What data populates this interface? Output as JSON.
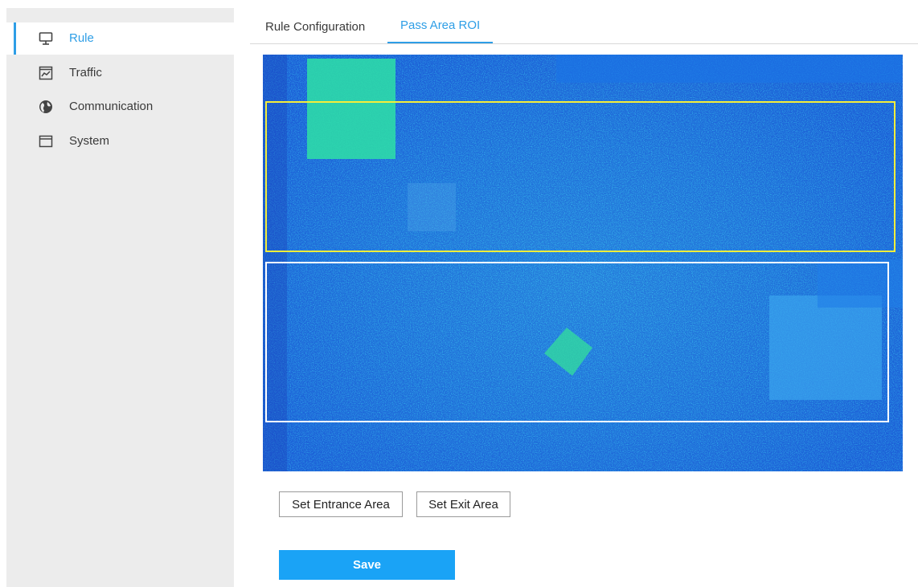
{
  "sidebar": {
    "items": [
      {
        "label": "Rule",
        "icon": "monitor-icon",
        "active": true
      },
      {
        "label": "Traffic",
        "icon": "chart-window-icon",
        "active": false
      },
      {
        "label": "Communication",
        "icon": "globe-icon",
        "active": false
      },
      {
        "label": "System",
        "icon": "window-icon",
        "active": false
      }
    ]
  },
  "tabs": [
    {
      "label": "Rule Configuration",
      "active": false
    },
    {
      "label": "Pass Area ROI",
      "active": true
    }
  ],
  "roi": {
    "entrance_color": "#f5ee3a",
    "exit_color": "#ffffff"
  },
  "buttons": {
    "set_entrance": "Set Entrance Area",
    "set_exit": "Set Exit Area",
    "save": "Save"
  },
  "colors": {
    "accent": "#2e9ee6",
    "save_button": "#1aa3f6"
  }
}
